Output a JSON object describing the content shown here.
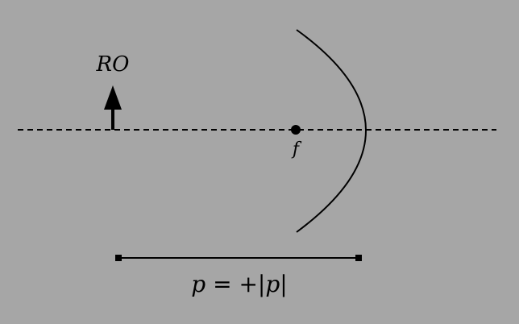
{
  "diagram": {
    "object_label": "RO",
    "focal_label": "f",
    "distance_label": "p = +|p|"
  },
  "colors": {
    "background": "#a6a6a6",
    "ink": "#000000"
  }
}
